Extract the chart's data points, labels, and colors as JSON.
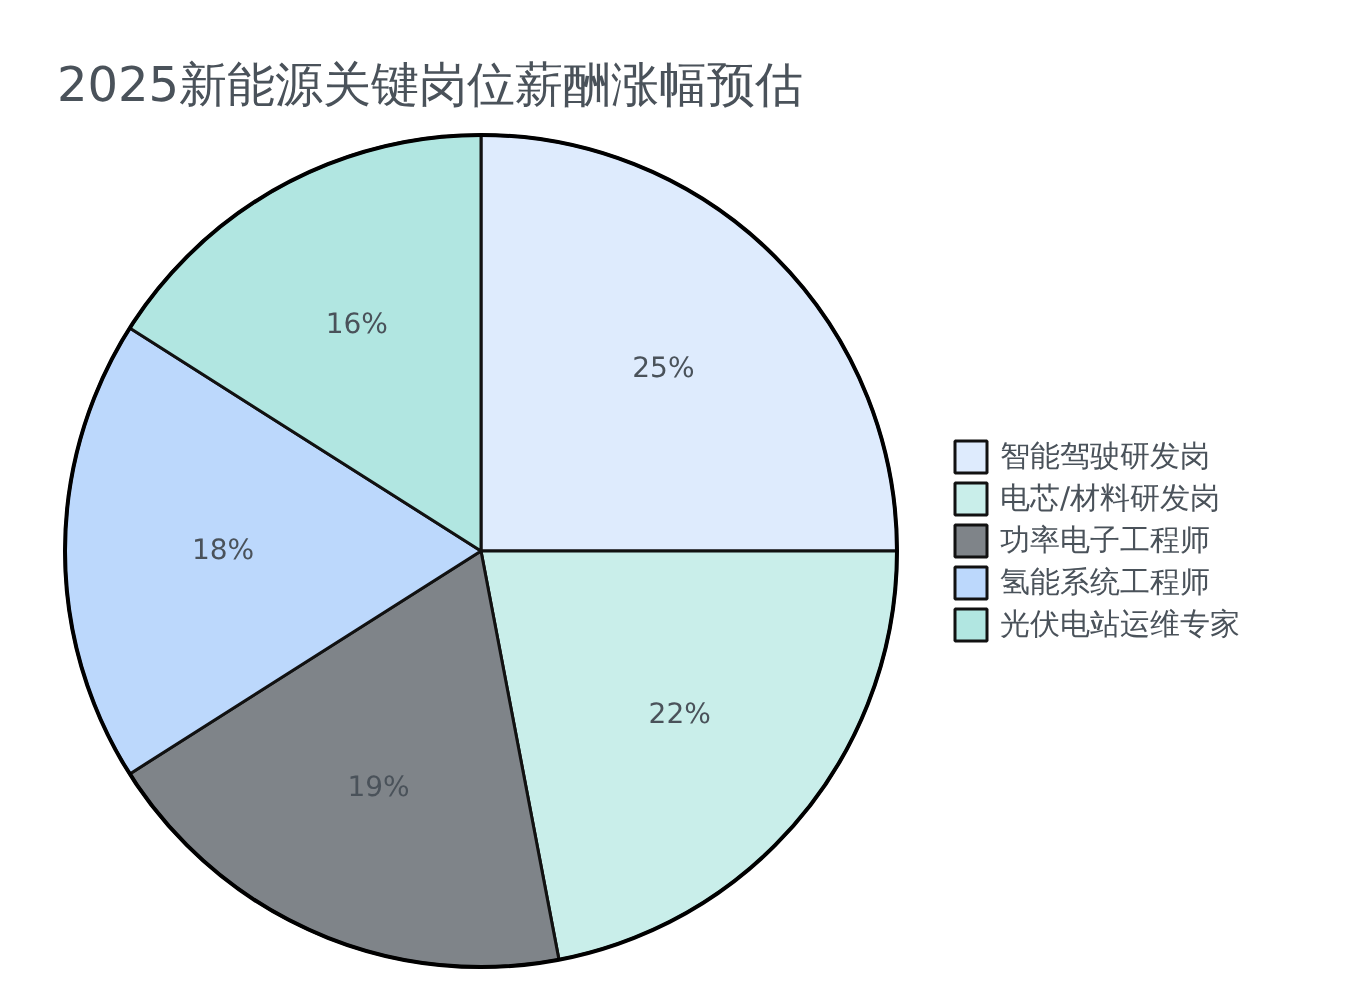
{
  "chart_data": {
    "type": "pie",
    "title": "2025新能源关键岗位薪酬涨幅预估",
    "categories": [
      "智能驾驶研发岗",
      "电芯/材料研发岗",
      "功率电子工程师",
      "氢能系统工程师",
      "光伏电站运维专家"
    ],
    "values": [
      25,
      22,
      19,
      18,
      16
    ],
    "colors": [
      "#deebfd",
      "#c9eeea",
      "#7f8489",
      "#bcd8fc",
      "#b1e6e1"
    ],
    "value_labels": [
      "25%",
      "22%",
      "19%",
      "18%",
      "16%"
    ],
    "legend": "right"
  }
}
